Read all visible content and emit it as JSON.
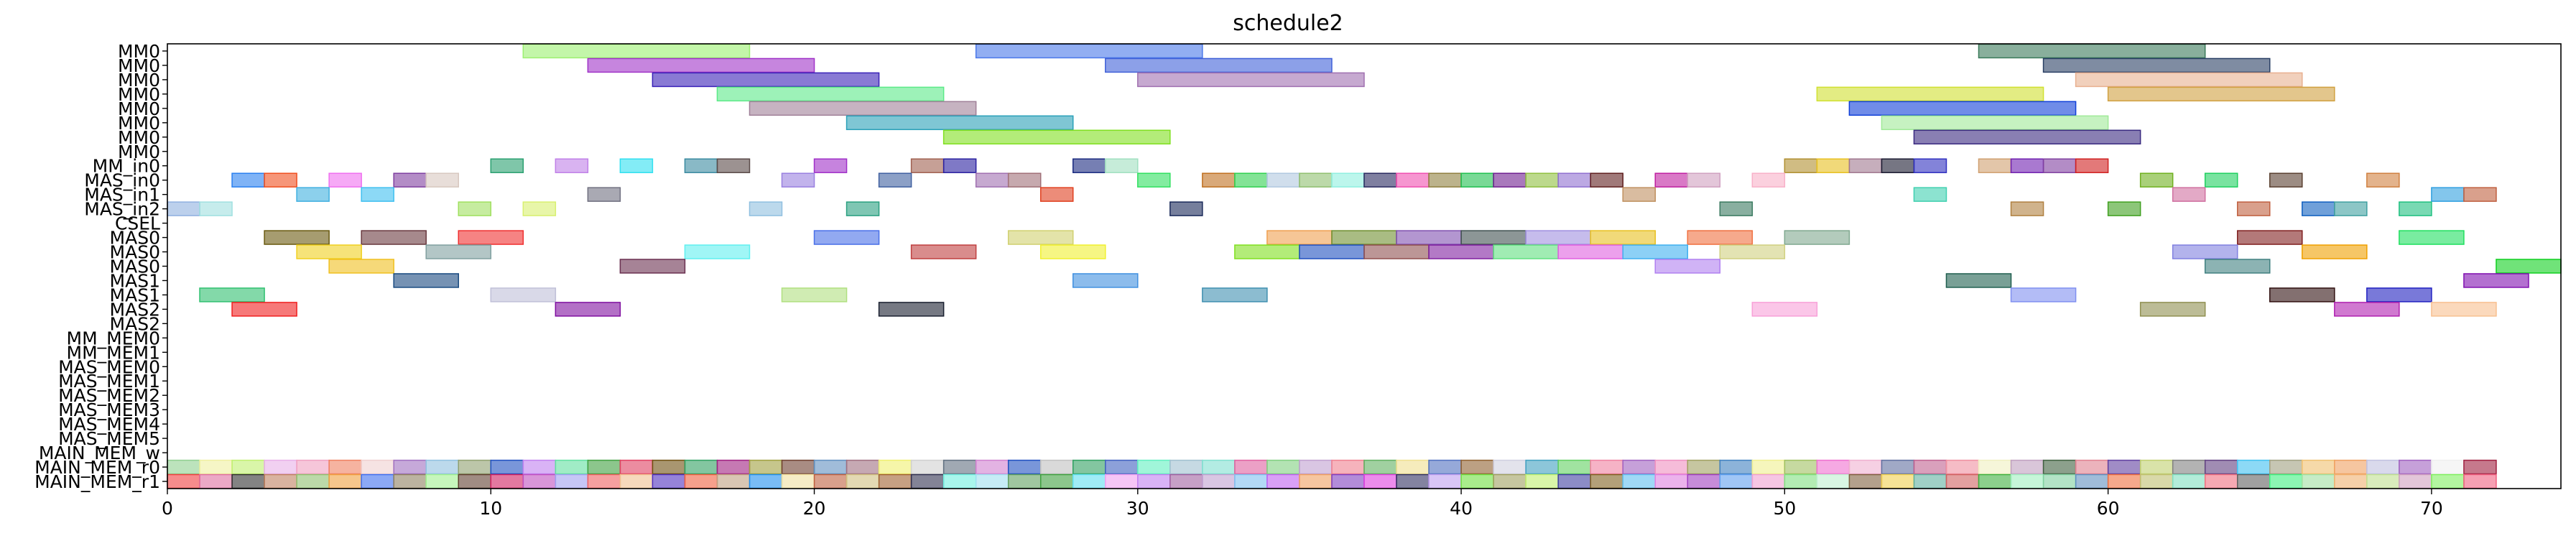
{
  "chart_data": {
    "type": "gantt",
    "title": "schedule2",
    "xlim": [
      0,
      74
    ],
    "xticks": [
      0,
      10,
      20,
      30,
      40,
      50,
      60,
      70
    ],
    "grid": false,
    "legend": "none",
    "rows": [
      "MM0",
      "MM0",
      "MM0",
      "MM0",
      "MM0",
      "MM0",
      "MM0",
      "MM0",
      "MM_in0",
      "MAS_in0",
      "MAS_in1",
      "MAS_in2",
      "CSEL",
      "MAS0",
      "MAS0",
      "MAS0",
      "MAS1",
      "MAS1",
      "MAS2",
      "MAS2",
      "MM_MEM0",
      "MM_MEM1",
      "MAS_MEM0",
      "MAS_MEM1",
      "MAS_MEM2",
      "MAS_MEM3",
      "MAS_MEM4",
      "MAS_MEM5",
      "MAIN_MEM_w",
      "MAIN_MEM_r0",
      "MAIN_MEM_r1"
    ],
    "tasks": [
      {
        "row": 0,
        "start": 11,
        "end": 18,
        "color": "#9bf070"
      },
      {
        "row": 0,
        "start": 25,
        "end": 32,
        "color": "#4a78ea"
      },
      {
        "row": 0,
        "start": 56,
        "end": 63,
        "color": "#3a7a5a"
      },
      {
        "row": 1,
        "start": 13,
        "end": 20,
        "color": "#a033c8"
      },
      {
        "row": 1,
        "start": 29,
        "end": 36,
        "color": "#4060d8"
      },
      {
        "row": 1,
        "start": 58,
        "end": 65,
        "color": "#2a3f64"
      },
      {
        "row": 2,
        "start": 15,
        "end": 22,
        "color": "#3a22b8"
      },
      {
        "row": 2,
        "start": 30,
        "end": 37,
        "color": "#a070b0"
      },
      {
        "row": 2,
        "start": 59,
        "end": 66,
        "color": "#e8b090"
      },
      {
        "row": 3,
        "start": 17,
        "end": 24,
        "color": "#5cea88"
      },
      {
        "row": 3,
        "start": 51,
        "end": 58,
        "color": "#d0e030"
      },
      {
        "row": 3,
        "start": 60,
        "end": 67,
        "color": "#d0a040"
      },
      {
        "row": 4,
        "start": 18,
        "end": 25,
        "color": "#a08098"
      },
      {
        "row": 4,
        "start": 52,
        "end": 59,
        "color": "#1040d8"
      },
      {
        "row": 5,
        "start": 21,
        "end": 28,
        "color": "#2aa0b8"
      },
      {
        "row": 5,
        "start": 53,
        "end": 60,
        "color": "#a0ea98"
      },
      {
        "row": 6,
        "start": 24,
        "end": 31,
        "color": "#80e020"
      },
      {
        "row": 6,
        "start": 54,
        "end": 61,
        "color": "#3a2a80"
      },
      {
        "row": 8,
        "start": 10,
        "end": 11,
        "color": "#2aa070"
      },
      {
        "row": 8,
        "start": 12,
        "end": 13,
        "color": "#c080e8"
      },
      {
        "row": 8,
        "start": 14,
        "end": 15,
        "color": "#30e0f0"
      },
      {
        "row": 8,
        "start": 16,
        "end": 17,
        "color": "#3a8aa0"
      },
      {
        "row": 8,
        "start": 17,
        "end": 18,
        "color": "#5a4a48"
      },
      {
        "row": 8,
        "start": 20,
        "end": 21,
        "color": "#a030c8"
      },
      {
        "row": 8,
        "start": 23,
        "end": 24,
        "color": "#a06050"
      },
      {
        "row": 8,
        "start": 24,
        "end": 25,
        "color": "#2a20a0"
      },
      {
        "row": 8,
        "start": 28,
        "end": 29,
        "color": "#1a2a80"
      },
      {
        "row": 8,
        "start": 29,
        "end": 30,
        "color": "#a0e0c0"
      },
      {
        "row": 8,
        "start": 50,
        "end": 51,
        "color": "#b09030"
      },
      {
        "row": 8,
        "start": 51,
        "end": 52,
        "color": "#e8c020"
      },
      {
        "row": 8,
        "start": 52,
        "end": 53,
        "color": "#a07890"
      },
      {
        "row": 8,
        "start": 53,
        "end": 54,
        "color": "#1a1a30"
      },
      {
        "row": 8,
        "start": 54,
        "end": 55,
        "color": "#3030c0"
      },
      {
        "row": 8,
        "start": 56,
        "end": 57,
        "color": "#d0a070"
      },
      {
        "row": 8,
        "start": 57,
        "end": 58,
        "color": "#7020b0"
      },
      {
        "row": 8,
        "start": 58,
        "end": 59,
        "color": "#8040a0"
      },
      {
        "row": 8,
        "start": 59,
        "end": 60,
        "color": "#d02020"
      },
      {
        "row": 9,
        "start": 2,
        "end": 3,
        "color": "#2a80f0"
      },
      {
        "row": 9,
        "start": 3,
        "end": 4,
        "color": "#f05020"
      },
      {
        "row": 9,
        "start": 5,
        "end": 6,
        "color": "#f070f0"
      },
      {
        "row": 9,
        "start": 7,
        "end": 8,
        "color": "#8040a0"
      },
      {
        "row": 9,
        "start": 8,
        "end": 9,
        "color": "#d8c8c0"
      },
      {
        "row": 9,
        "start": 19,
        "end": 20,
        "color": "#9a80e0"
      },
      {
        "row": 9,
        "start": 22,
        "end": 23,
        "color": "#4060a0"
      },
      {
        "row": 9,
        "start": 25,
        "end": 26,
        "color": "#a070b0"
      },
      {
        "row": 9,
        "start": 26,
        "end": 27,
        "color": "#a07078"
      },
      {
        "row": 9,
        "start": 30,
        "end": 31,
        "color": "#30e060"
      },
      {
        "row": 9,
        "start": 32,
        "end": 33,
        "color": "#c07020"
      },
      {
        "row": 9,
        "start": 33,
        "end": 34,
        "color": "#30d050"
      },
      {
        "row": 9,
        "start": 34,
        "end": 35,
        "color": "#b0c8e0"
      },
      {
        "row": 9,
        "start": 35,
        "end": 36,
        "color": "#90c070"
      },
      {
        "row": 9,
        "start": 36,
        "end": 37,
        "color": "#90f0e0"
      },
      {
        "row": 9,
        "start": 37,
        "end": 38,
        "color": "#2a2a60"
      },
      {
        "row": 9,
        "start": 38,
        "end": 39,
        "color": "#f050b0"
      },
      {
        "row": 9,
        "start": 39,
        "end": 40,
        "color": "#908040"
      },
      {
        "row": 9,
        "start": 40,
        "end": 41,
        "color": "#20c050"
      },
      {
        "row": 9,
        "start": 41,
        "end": 42,
        "color": "#702090"
      },
      {
        "row": 9,
        "start": 42,
        "end": 43,
        "color": "#90c040"
      },
      {
        "row": 9,
        "start": 43,
        "end": 44,
        "color": "#9070d0"
      },
      {
        "row": 9,
        "start": 44,
        "end": 45,
        "color": "#602020"
      },
      {
        "row": 9,
        "start": 46,
        "end": 47,
        "color": "#c020a0"
      },
      {
        "row": 9,
        "start": 47,
        "end": 48,
        "color": "#d0a0c0"
      },
      {
        "row": 9,
        "start": 49,
        "end": 50,
        "color": "#f8b0c8"
      },
      {
        "row": 9,
        "start": 61,
        "end": 62,
        "color": "#70b020"
      },
      {
        "row": 9,
        "start": 63,
        "end": 64,
        "color": "#20d060"
      },
      {
        "row": 9,
        "start": 65,
        "end": 66,
        "color": "#5a4030"
      },
      {
        "row": 9,
        "start": 68,
        "end": 69,
        "color": "#d08040"
      },
      {
        "row": 10,
        "start": 4,
        "end": 5,
        "color": "#40b0e0"
      },
      {
        "row": 10,
        "start": 6,
        "end": 7,
        "color": "#40c0f0"
      },
      {
        "row": 10,
        "start": 13,
        "end": 14,
        "color": "#707080"
      },
      {
        "row": 10,
        "start": 27,
        "end": 28,
        "color": "#e04020"
      },
      {
        "row": 10,
        "start": 45,
        "end": 46,
        "color": "#c09060"
      },
      {
        "row": 10,
        "start": 54,
        "end": 55,
        "color": "#40d0b0"
      },
      {
        "row": 10,
        "start": 62,
        "end": 63,
        "color": "#d070a0"
      },
      {
        "row": 10,
        "start": 70,
        "end": 71,
        "color": "#30a0e0"
      },
      {
        "row": 10,
        "start": 71,
        "end": 72,
        "color": "#c06040"
      },
      {
        "row": 11,
        "start": 0,
        "end": 1,
        "color": "#90b0e0"
      },
      {
        "row": 11,
        "start": 1,
        "end": 2,
        "color": "#a0e0e0"
      },
      {
        "row": 11,
        "start": 9,
        "end": 10,
        "color": "#a0e060"
      },
      {
        "row": 11,
        "start": 11,
        "end": 12,
        "color": "#d8f070"
      },
      {
        "row": 11,
        "start": 18,
        "end": 19,
        "color": "#90c0e0"
      },
      {
        "row": 11,
        "start": 21,
        "end": 22,
        "color": "#2aa080"
      },
      {
        "row": 11,
        "start": 31,
        "end": 32,
        "color": "#1a2a5a"
      },
      {
        "row": 11,
        "start": 48,
        "end": 49,
        "color": "#3a7a60"
      },
      {
        "row": 11,
        "start": 57,
        "end": 58,
        "color": "#b08040"
      },
      {
        "row": 11,
        "start": 60,
        "end": 61,
        "color": "#40a020"
      },
      {
        "row": 11,
        "start": 64,
        "end": 65,
        "color": "#c06040"
      },
      {
        "row": 11,
        "start": 66,
        "end": 67,
        "color": "#1060c0"
      },
      {
        "row": 11,
        "start": 67,
        "end": 68,
        "color": "#40a0a0"
      },
      {
        "row": 11,
        "start": 69,
        "end": 70,
        "color": "#20c080"
      },
      {
        "row": 13,
        "start": 3,
        "end": 5,
        "color": "#6a5a10"
      },
      {
        "row": 13,
        "start": 6,
        "end": 8,
        "color": "#6a3a40"
      },
      {
        "row": 13,
        "start": 9,
        "end": 11,
        "color": "#f03030"
      },
      {
        "row": 13,
        "start": 20,
        "end": 22,
        "color": "#4a70e8"
      },
      {
        "row": 13,
        "start": 26,
        "end": 28,
        "color": "#d0d070"
      },
      {
        "row": 13,
        "start": 34,
        "end": 36,
        "color": "#f0a050"
      },
      {
        "row": 13,
        "start": 36,
        "end": 38,
        "color": "#709030"
      },
      {
        "row": 13,
        "start": 38,
        "end": 40,
        "color": "#8050b0"
      },
      {
        "row": 13,
        "start": 40,
        "end": 42,
        "color": "#405050"
      },
      {
        "row": 13,
        "start": 42,
        "end": 44,
        "color": "#a090e0"
      },
      {
        "row": 13,
        "start": 44,
        "end": 46,
        "color": "#e8c020"
      },
      {
        "row": 13,
        "start": 47,
        "end": 49,
        "color": "#f07040"
      },
      {
        "row": 13,
        "start": 50,
        "end": 52,
        "color": "#80a890"
      },
      {
        "row": 13,
        "start": 64,
        "end": 66,
        "color": "#802020"
      },
      {
        "row": 13,
        "start": 69,
        "end": 71,
        "color": "#20e060"
      },
      {
        "row": 14,
        "start": 4,
        "end": 6,
        "color": "#f0d020"
      },
      {
        "row": 14,
        "start": 8,
        "end": 10,
        "color": "#80a0a0"
      },
      {
        "row": 14,
        "start": 16,
        "end": 18,
        "color": "#60f0f0"
      },
      {
        "row": 14,
        "start": 23,
        "end": 25,
        "color": "#c04040"
      },
      {
        "row": 14,
        "start": 27,
        "end": 29,
        "color": "#f0f030"
      },
      {
        "row": 14,
        "start": 33,
        "end": 35,
        "color": "#80e020"
      },
      {
        "row": 14,
        "start": 35,
        "end": 37,
        "color": "#2050c0"
      },
      {
        "row": 14,
        "start": 37,
        "end": 39,
        "color": "#905050"
      },
      {
        "row": 14,
        "start": 39,
        "end": 41,
        "color": "#8020a0"
      },
      {
        "row": 14,
        "start": 41,
        "end": 43,
        "color": "#60e080"
      },
      {
        "row": 14,
        "start": 43,
        "end": 45,
        "color": "#e060e0"
      },
      {
        "row": 14,
        "start": 45,
        "end": 47,
        "color": "#40b0f0"
      },
      {
        "row": 14,
        "start": 48,
        "end": 50,
        "color": "#d0d080"
      },
      {
        "row": 14,
        "start": 62,
        "end": 64,
        "color": "#8080e0"
      },
      {
        "row": 14,
        "start": 66,
        "end": 68,
        "color": "#f0a000"
      },
      {
        "row": 15,
        "start": 5,
        "end": 7,
        "color": "#f0c020"
      },
      {
        "row": 15,
        "start": 14,
        "end": 16,
        "color": "#6a3050"
      },
      {
        "row": 15,
        "start": 46,
        "end": 48,
        "color": "#b080f0"
      },
      {
        "row": 15,
        "start": 63,
        "end": 65,
        "color": "#408080"
      },
      {
        "row": 15,
        "start": 72,
        "end": 74,
        "color": "#10d020"
      },
      {
        "row": 16,
        "start": 7,
        "end": 9,
        "color": "#1a4a80"
      },
      {
        "row": 16,
        "start": 28,
        "end": 30,
        "color": "#4090e0"
      },
      {
        "row": 16,
        "start": 55,
        "end": 57,
        "color": "#206050"
      },
      {
        "row": 16,
        "start": 71,
        "end": 73,
        "color": "#8010b0"
      },
      {
        "row": 17,
        "start": 1,
        "end": 3,
        "color": "#30c070"
      },
      {
        "row": 17,
        "start": 10,
        "end": 12,
        "color": "#c0c0d8"
      },
      {
        "row": 17,
        "start": 19,
        "end": 21,
        "color": "#b0e080"
      },
      {
        "row": 17,
        "start": 32,
        "end": 34,
        "color": "#4090b0"
      },
      {
        "row": 17,
        "start": 57,
        "end": 59,
        "color": "#8090f0"
      },
      {
        "row": 17,
        "start": 65,
        "end": 67,
        "color": "#301010"
      },
      {
        "row": 17,
        "start": 68,
        "end": 70,
        "color": "#2020c0"
      },
      {
        "row": 18,
        "start": 2,
        "end": 4,
        "color": "#f02020"
      },
      {
        "row": 18,
        "start": 12,
        "end": 14,
        "color": "#8010a0"
      },
      {
        "row": 18,
        "start": 22,
        "end": 24,
        "color": "#1a2030"
      },
      {
        "row": 18,
        "start": 49,
        "end": 51,
        "color": "#f8a0d8"
      },
      {
        "row": 18,
        "start": 61,
        "end": 63,
        "color": "#909050"
      },
      {
        "row": 18,
        "start": 67,
        "end": 69,
        "color": "#b020b0"
      },
      {
        "row": 18,
        "start": 70,
        "end": 72,
        "color": "#f8c090"
      }
    ],
    "mem_colors": {
      "r0": [
        "#90d090",
        "#f0f0a0",
        "#c0f070",
        "#e8b0e8",
        "#f0a0c0",
        "#f08060",
        "#f0d0d0",
        "#a070c0",
        "#90c0e0",
        "#90a070",
        "#2050c0",
        "#c080f0",
        "#60e0a0",
        "#40a040",
        "#e04060",
        "#705010",
        "#30a060",
        "#a02080",
        "#a0a040",
        "#704030",
        "#6090c0",
        "#a07080",
        "#f0f070",
        "#d0d0d0",
        "#607080",
        "#d080d0",
        "#2050c0",
        "#c0c0c0",
        "#30a060",
        "#4060c0",
        "#60f0c0",
        "#a0c0d0",
        "#80e0d0",
        "#e060a0",
        "#80d080",
        "#c0a0d0",
        "#f08090",
        "#60b060",
        "#f0e090",
        "#5070c0",
        "#906030",
        "#d0d0e0",
        "#40a0c0",
        "#60d060",
        "#f080a0",
        "#a060c0",
        "#f090c0",
        "#a0a060",
        "#4080c0",
        "#f0f090",
        "#a0c060",
        "#f070d0",
        "#f0b0d0",
        "#6070a0",
        "#c06090",
        "#f090a0",
        "#f0f0c0",
        "#c0a0c0",
        "#406040",
        "#e08090",
        "#6040a0",
        "#c0d070",
        "#808080",
        "#604080",
        "#40c0f0",
        "#a0a080",
        "#f0c070",
        "#f0a060",
        "#c0c0e0",
        "#a060c0",
        "#f0f0f0",
        "#a02040"
      ],
      "r1": [
        "#f04040",
        "#e070a0",
        "#303030",
        "#c08060",
        "#90c070",
        "#f0a040",
        "#4070f0",
        "#908060",
        "#a0f090",
        "#604030",
        "#d02060",
        "#c050c0",
        "#a0a0f0",
        "#f06060",
        "#f0c090",
        "#5030c0",
        "#f06040",
        "#c0a080",
        "#2090f0",
        "#f0e0a0",
        "#c06040",
        "#d0c080",
        "#a06030",
        "#303050",
        "#70f0e0",
        "#a0e0f0",
        "#60a060",
        "#40a040",
        "#60e0f0",
        "#f0a0f0",
        "#c080f0",
        "#a060a0",
        "#c0a0d0",
        "#80c0f0",
        "#c060f0",
        "#f0a060",
        "#8040c0",
        "#e040e0",
        "#303060",
        "#c0a0f0",
        "#70e040",
        "#a0a060",
        "#c0f070",
        "#4040a0",
        "#806020",
        "#60c0f0",
        "#e080e0",
        "#a040c0",
        "#60a0f0",
        "#f0a0d0",
        "#80e080",
        "#c0f0d0",
        "#806040",
        "#f0d050",
        "#60b0a0",
        "#d06060",
        "#40b040",
        "#a0f0c0",
        "#80d0a0",
        "#6090c0",
        "#f07040",
        "#c0c070",
        "#80e0c0",
        "#f07080",
        "#606060",
        "#40f080",
        "#a0e0a0",
        "#f0b070",
        "#c0e090",
        "#d0a0c0",
        "#80f060",
        "#f06080"
      ]
    }
  }
}
